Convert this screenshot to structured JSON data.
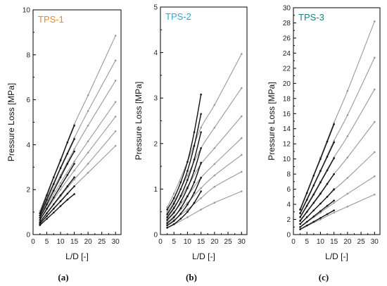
{
  "chart_data": [
    {
      "type": "line",
      "title": "TPS-1",
      "title_color": "#E8892A",
      "caption": "(a)",
      "xlabel": "L/D [-]",
      "ylabel": "Pressure Loss [MPa]",
      "xlim": [
        0,
        32
      ],
      "ylim": [
        0,
        10
      ],
      "xticks": [
        0,
        5,
        10,
        15,
        20,
        25,
        30
      ],
      "yticks": [
        0,
        2,
        4,
        6,
        8,
        10
      ],
      "grid": false,
      "series": [
        {
          "color": "#111111",
          "x": [
            2.5,
            5,
            7.5,
            10,
            12.5,
            15
          ],
          "y": [
            0.95,
            1.75,
            2.55,
            3.3,
            4.1,
            4.85
          ]
        },
        {
          "color": "#111111",
          "x": [
            2.5,
            5,
            7.5,
            10,
            12.5,
            15
          ],
          "y": [
            0.85,
            1.55,
            2.25,
            2.95,
            3.6,
            4.25
          ]
        },
        {
          "color": "#111111",
          "x": [
            2.5,
            5,
            7.5,
            10,
            12.5,
            15
          ],
          "y": [
            0.75,
            1.35,
            1.95,
            2.55,
            3.15,
            3.7
          ]
        },
        {
          "color": "#111111",
          "x": [
            2.5,
            5,
            7.5,
            10,
            12.5,
            15
          ],
          "y": [
            0.65,
            1.15,
            1.65,
            2.15,
            2.65,
            3.15
          ]
        },
        {
          "color": "#111111",
          "x": [
            2.5,
            5,
            7.5,
            10,
            12.5,
            15
          ],
          "y": [
            0.55,
            0.95,
            1.35,
            1.75,
            2.15,
            2.55
          ]
        },
        {
          "color": "#111111",
          "x": [
            2.5,
            5,
            7.5,
            10,
            12.5,
            15
          ],
          "y": [
            0.48,
            0.82,
            1.15,
            1.48,
            1.82,
            2.15
          ]
        },
        {
          "color": "#111111",
          "x": [
            2.5,
            5,
            7.5,
            10,
            12.5,
            15
          ],
          "y": [
            0.42,
            0.7,
            0.98,
            1.27,
            1.55,
            1.8
          ]
        },
        {
          "color": "#999999",
          "x": [
            2.5,
            10,
            15,
            20,
            30
          ],
          "y": [
            1.05,
            3.35,
            4.9,
            6.2,
            8.85
          ]
        },
        {
          "color": "#999999",
          "x": [
            2.5,
            10,
            15,
            20,
            30
          ],
          "y": [
            0.95,
            3.0,
            4.3,
            5.5,
            7.75
          ]
        },
        {
          "color": "#999999",
          "x": [
            2.5,
            10,
            15,
            20,
            30
          ],
          "y": [
            0.85,
            2.65,
            3.8,
            4.85,
            6.85
          ]
        },
        {
          "color": "#999999",
          "x": [
            2.5,
            10,
            15,
            20,
            30
          ],
          "y": [
            0.75,
            2.3,
            3.25,
            4.15,
            5.9
          ]
        },
        {
          "color": "#999999",
          "x": [
            2.5,
            10,
            15,
            20,
            30
          ],
          "y": [
            0.65,
            2.0,
            2.85,
            3.65,
            5.25
          ]
        },
        {
          "color": "#999999",
          "x": [
            2.5,
            10,
            15,
            20,
            30
          ],
          "y": [
            0.55,
            1.7,
            2.45,
            3.15,
            4.6
          ]
        },
        {
          "color": "#999999",
          "x": [
            2.5,
            10,
            15,
            20,
            30
          ],
          "y": [
            0.5,
            1.5,
            2.15,
            2.75,
            3.95
          ]
        }
      ]
    },
    {
      "type": "line",
      "title": "TPS-2",
      "title_color": "#2FA8DC",
      "caption": "(b)",
      "xlabel": "L/D [-]",
      "ylabel": "Pressure Loss [MPa]",
      "xlim": [
        0,
        32
      ],
      "ylim": [
        0,
        5
      ],
      "xticks": [
        0,
        5,
        10,
        15,
        20,
        25,
        30
      ],
      "yticks": [
        0,
        1,
        2,
        3,
        4,
        5
      ],
      "grid": false,
      "series": [
        {
          "color": "#111111",
          "x": [
            2.5,
            5,
            7.5,
            10,
            12.5,
            15
          ],
          "y": [
            0.55,
            0.8,
            1.15,
            1.6,
            2.25,
            3.08
          ]
        },
        {
          "color": "#111111",
          "x": [
            2.5,
            5,
            7.5,
            10,
            12.5,
            15
          ],
          "y": [
            0.45,
            0.68,
            1.0,
            1.4,
            1.95,
            2.65
          ]
        },
        {
          "color": "#111111",
          "x": [
            2.5,
            5,
            7.5,
            10,
            12.5,
            15
          ],
          "y": [
            0.38,
            0.58,
            0.85,
            1.2,
            1.65,
            2.25
          ]
        },
        {
          "color": "#111111",
          "x": [
            2.5,
            5,
            7.5,
            10,
            12.5,
            15
          ],
          "y": [
            0.32,
            0.48,
            0.72,
            1.02,
            1.4,
            1.9
          ]
        },
        {
          "color": "#111111",
          "x": [
            2.5,
            5,
            7.5,
            10,
            12.5,
            15
          ],
          "y": [
            0.25,
            0.38,
            0.58,
            0.84,
            1.15,
            1.58
          ]
        },
        {
          "color": "#111111",
          "x": [
            2.5,
            5,
            7.5,
            10,
            12.5,
            15
          ],
          "y": [
            0.2,
            0.3,
            0.46,
            0.66,
            0.92,
            1.25
          ]
        },
        {
          "color": "#111111",
          "x": [
            2.5,
            5,
            7.5,
            10,
            12.5,
            15
          ],
          "y": [
            0.15,
            0.23,
            0.35,
            0.5,
            0.7,
            0.95
          ]
        },
        {
          "color": "#999999",
          "x": [
            2.5,
            5,
            10,
            15,
            20,
            30
          ],
          "y": [
            0.6,
            0.9,
            1.6,
            2.35,
            2.85,
            3.97
          ]
        },
        {
          "color": "#999999",
          "x": [
            2.5,
            5,
            10,
            15,
            20,
            30
          ],
          "y": [
            0.5,
            0.72,
            1.3,
            1.9,
            2.35,
            3.22
          ]
        },
        {
          "color": "#999999",
          "x": [
            2.5,
            5,
            10,
            15,
            20,
            30
          ],
          "y": [
            0.42,
            0.6,
            1.05,
            1.55,
            1.9,
            2.6
          ]
        },
        {
          "color": "#999999",
          "x": [
            2.5,
            5,
            10,
            15,
            20,
            30
          ],
          "y": [
            0.35,
            0.5,
            0.85,
            1.25,
            1.55,
            2.12
          ]
        },
        {
          "color": "#999999",
          "x": [
            2.5,
            5,
            10,
            15,
            20,
            30
          ],
          "y": [
            0.28,
            0.4,
            0.7,
            1.02,
            1.3,
            1.75
          ]
        },
        {
          "color": "#999999",
          "x": [
            2.5,
            5,
            10,
            15,
            20,
            30
          ],
          "y": [
            0.22,
            0.32,
            0.55,
            0.8,
            1.05,
            1.38
          ]
        },
        {
          "color": "#999999",
          "x": [
            2.5,
            5,
            10,
            15,
            20,
            30
          ],
          "y": [
            0.15,
            0.22,
            0.38,
            0.55,
            0.7,
            0.95
          ]
        }
      ]
    },
    {
      "type": "line",
      "title": "TPS-3",
      "title_color": "#1C7F86",
      "caption": "(c)",
      "xlabel": "L/D [-]",
      "ylabel": "Pressure Loss [MPa]",
      "xlim": [
        0,
        32
      ],
      "ylim": [
        0,
        30
      ],
      "xticks": [
        0,
        5,
        10,
        15,
        20,
        25,
        30
      ],
      "yticks": [
        0,
        2,
        4,
        6,
        8,
        10,
        12,
        14,
        16,
        18,
        20,
        22,
        24,
        26,
        28,
        30
      ],
      "grid": false,
      "series": [
        {
          "color": "#111111",
          "x": [
            2.5,
            5,
            7.5,
            10,
            12.5,
            15
          ],
          "y": [
            3.3,
            5.5,
            7.8,
            10.0,
            12.3,
            14.6
          ]
        },
        {
          "color": "#111111",
          "x": [
            2.5,
            5,
            7.5,
            10,
            12.5,
            15
          ],
          "y": [
            2.8,
            4.6,
            6.5,
            8.4,
            10.3,
            12.2
          ]
        },
        {
          "color": "#111111",
          "x": [
            2.5,
            5,
            7.5,
            10,
            12.5,
            15
          ],
          "y": [
            2.3,
            3.8,
            5.3,
            6.9,
            8.5,
            10.1
          ]
        },
        {
          "color": "#111111",
          "x": [
            2.5,
            5,
            7.5,
            10,
            12.5,
            15
          ],
          "y": [
            1.8,
            3.0,
            4.2,
            5.4,
            6.7,
            8.0
          ]
        },
        {
          "color": "#111111",
          "x": [
            2.5,
            5,
            7.5,
            10,
            12.5,
            15
          ],
          "y": [
            1.4,
            2.3,
            3.2,
            4.1,
            5.0,
            6.0
          ]
        },
        {
          "color": "#111111",
          "x": [
            2.5,
            5,
            7.5,
            10,
            12.5,
            15
          ],
          "y": [
            1.0,
            1.7,
            2.4,
            3.1,
            3.8,
            4.5
          ]
        },
        {
          "color": "#111111",
          "x": [
            2.5,
            5,
            7.5,
            10,
            12.5,
            15
          ],
          "y": [
            0.7,
            1.2,
            1.7,
            2.2,
            2.7,
            3.2
          ]
        },
        {
          "color": "#999999",
          "x": [
            2.5,
            10,
            15,
            20,
            30
          ],
          "y": [
            3.4,
            10.2,
            14.8,
            19.0,
            28.2
          ]
        },
        {
          "color": "#999999",
          "x": [
            2.5,
            10,
            15,
            20,
            30
          ],
          "y": [
            2.9,
            8.5,
            12.4,
            15.8,
            23.4
          ]
        },
        {
          "color": "#999999",
          "x": [
            2.5,
            10,
            15,
            20,
            30
          ],
          "y": [
            2.4,
            7.0,
            10.2,
            13.0,
            19.2
          ]
        },
        {
          "color": "#999999",
          "x": [
            2.5,
            10,
            15,
            20,
            30
          ],
          "y": [
            1.9,
            5.5,
            8.0,
            10.2,
            14.9
          ]
        },
        {
          "color": "#999999",
          "x": [
            2.5,
            10,
            15,
            20,
            30
          ],
          "y": [
            1.4,
            4.1,
            5.9,
            7.5,
            10.9
          ]
        },
        {
          "color": "#999999",
          "x": [
            2.5,
            10,
            15,
            20,
            30
          ],
          "y": [
            1.0,
            2.9,
            4.2,
            5.4,
            7.7
          ]
        },
        {
          "color": "#999999",
          "x": [
            2.5,
            10,
            15,
            20,
            30
          ],
          "y": [
            0.7,
            2.0,
            2.9,
            3.7,
            5.3
          ]
        }
      ]
    }
  ]
}
